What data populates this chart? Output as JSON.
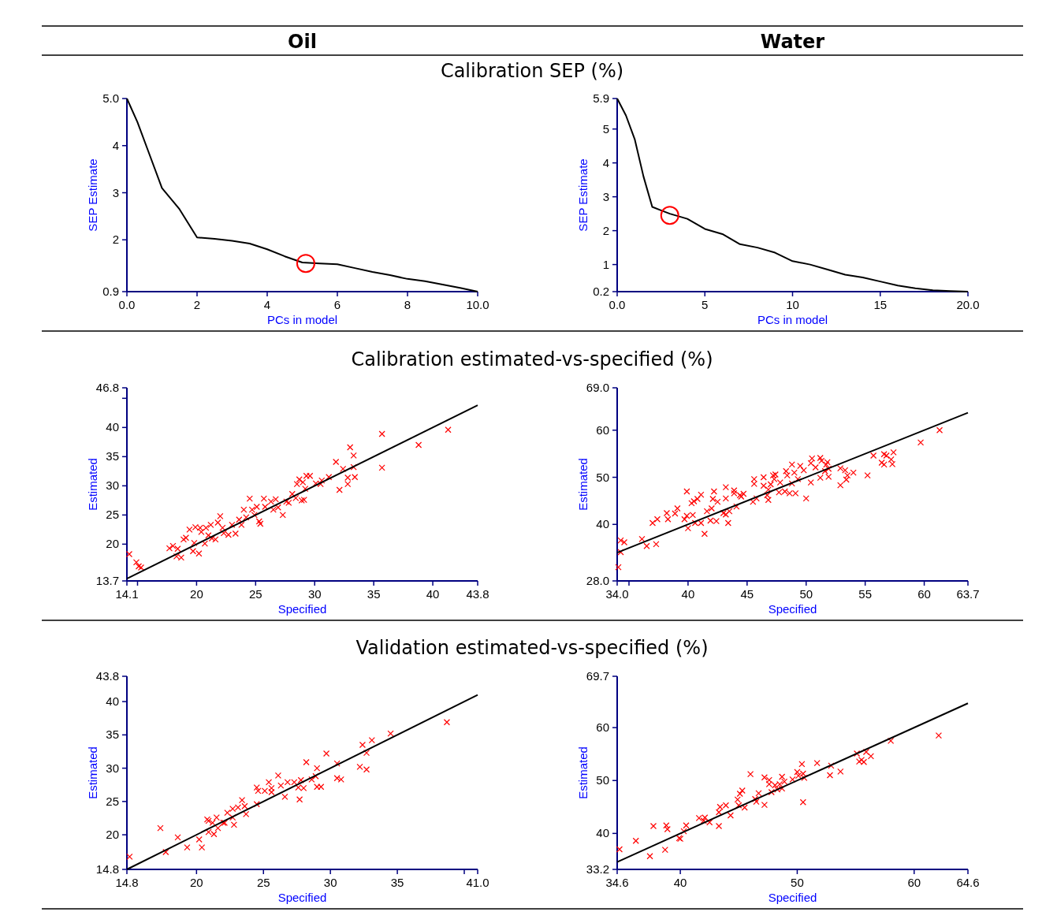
{
  "chart_data": [
    {
      "type": "line",
      "title": "Calibration SEP (%)",
      "subtitle": "Oil",
      "xlabel": "PCs in model",
      "ylabel": "SEP Estimate",
      "xlim": [
        0,
        10
      ],
      "ylim": [
        0.9,
        5
      ],
      "xticks": [
        {
          "value": 0,
          "label": "0.0"
        },
        2,
        4,
        6,
        8,
        {
          "value": 10,
          "label": "10.0"
        }
      ],
      "yticks": [
        0.9,
        2,
        3,
        4,
        {
          "value": 5,
          "label": "5.0"
        }
      ],
      "series": [
        {
          "color": "#000000",
          "x": [
            0,
            0.3,
            0.6,
            1,
            1.5,
            2,
            2.5,
            3,
            3.5,
            4,
            4.5,
            5,
            5.5,
            6,
            6.5,
            7,
            7.5,
            8,
            8.5,
            9,
            9.5,
            10
          ],
          "values": [
            5,
            4.5,
            3.9,
            3.1,
            2.65,
            2.05,
            2.02,
            1.98,
            1.92,
            1.8,
            1.65,
            1.52,
            1.5,
            1.48,
            1.4,
            1.32,
            1.25,
            1.17,
            1.12,
            1.05,
            0.98,
            0.9
          ]
        },
        {
          "type": "scatter",
          "marker": "circle",
          "color": "#ff0000",
          "x": [
            5.1
          ],
          "values": [
            1.5
          ]
        }
      ]
    },
    {
      "type": "line",
      "subtitle": "Water",
      "xlabel": "PCs in model",
      "ylabel": "SEP Estimate",
      "xlim": [
        0,
        20
      ],
      "ylim": [
        0.2,
        5.9
      ],
      "xticks": [
        {
          "value": 0,
          "label": "0.0"
        },
        5,
        10,
        15,
        {
          "value": 20,
          "label": "20.0"
        }
      ],
      "yticks": [
        0.2,
        1,
        2,
        3,
        4,
        5,
        5.9
      ],
      "series": [
        {
          "color": "#000000",
          "x": [
            0,
            0.5,
            1,
            1.5,
            2,
            2.5,
            3,
            4,
            5,
            6,
            7,
            8,
            9,
            10,
            11,
            12,
            13,
            14,
            15,
            16,
            17,
            18,
            19,
            20
          ],
          "values": [
            5.9,
            5.4,
            4.7,
            3.6,
            2.7,
            2.6,
            2.5,
            2.35,
            2.05,
            1.9,
            1.6,
            1.5,
            1.35,
            1.1,
            1,
            0.85,
            0.7,
            0.62,
            0.5,
            0.38,
            0.3,
            0.24,
            0.22,
            0.2
          ]
        },
        {
          "type": "scatter",
          "marker": "circle",
          "color": "#ff0000",
          "x": [
            3
          ],
          "values": [
            2.45
          ]
        }
      ]
    },
    {
      "type": "scatter",
      "title": "Calibration estimated-vs-specified (%)",
      "xlabel": "Specified",
      "ylabel": "Estimated",
      "xlim": [
        14.1,
        43.8
      ],
      "ylim": [
        13.7,
        46.8
      ],
      "xticks": [
        14.1,
        {
          "value": 15,
          "label": null
        },
        20,
        25,
        30,
        35,
        40,
        43.8
      ],
      "yticks": [
        13.7,
        20,
        25,
        30,
        35,
        40,
        {
          "value": 45,
          "label": null
        },
        46.8
      ],
      "series": [
        {
          "marker": "cross",
          "color": "#ff0000",
          "x": [
            14.3,
            14.9,
            15.1,
            15.3,
            17.7,
            18,
            18.3,
            18.4,
            18.7,
            18.9,
            19.1,
            19.4,
            19.7,
            19.8,
            19.9,
            20.2,
            20.3,
            20.4,
            20.7,
            20.8,
            21,
            21.2,
            21.3,
            21.6,
            21.8,
            22,
            22.2,
            22.3,
            22.7,
            23,
            23.3,
            23.6,
            23.8,
            24,
            24.2,
            24.5,
            24.7,
            24.9,
            25.1,
            25.3,
            25.4,
            25.7,
            25.8,
            26.3,
            26.5,
            26.7,
            26.9,
            27.3,
            27.6,
            27.8,
            28.1,
            28.4,
            28.5,
            28.7,
            28.9,
            29,
            29.1,
            29.2,
            29.3,
            29.6,
            30.1,
            30.5,
            30.6,
            31.2,
            31.8,
            32.1,
            32.4,
            32.8,
            32.8,
            33,
            33.3,
            33.3,
            33.4,
            35.7,
            35.7,
            38.8,
            41.3
          ],
          "values": [
            18.3,
            16.9,
            16.2,
            16,
            19.3,
            19.7,
            17.9,
            19.2,
            17.7,
            20.8,
            21.1,
            22.5,
            18.8,
            20.2,
            22.9,
            18.4,
            22.8,
            22.1,
            20.1,
            22.8,
            21.5,
            23.3,
            21,
            20.8,
            23.7,
            24.8,
            22.8,
            21.9,
            21.6,
            23.3,
            21.8,
            24.2,
            23.3,
            25.9,
            24.6,
            27.8,
            25.9,
            25,
            26.4,
            23.9,
            23.5,
            27.8,
            26.4,
            27.3,
            25.9,
            27.7,
            26.3,
            25,
            27.3,
            27.1,
            28.6,
            27.9,
            30.3,
            31.1,
            27.5,
            30.6,
            27.6,
            29.5,
            31.7,
            31.7,
            30.4,
            30.3,
            30.9,
            31.5,
            34.1,
            29.3,
            32.9,
            30.3,
            31.4,
            36.6,
            35.2,
            33.2,
            31.5,
            38.9,
            33.1,
            37,
            39.6
          ]
        },
        {
          "type": "line",
          "color": "#000000",
          "x": [
            14.1,
            43.8
          ],
          "values": [
            14.1,
            43.8
          ]
        }
      ]
    },
    {
      "type": "scatter",
      "xlabel": "Specified",
      "ylabel": "Estimated",
      "xlim": [
        34,
        63.7
      ],
      "ylim": [
        28,
        69
      ],
      "xticks": [
        {
          "value": 34,
          "label": "34.0"
        },
        {
          "value": 35,
          "label": null
        },
        40,
        45,
        50,
        55,
        60,
        63.7
      ],
      "yticks": [
        {
          "value": 28,
          "label": "28.0"
        },
        40,
        50,
        60,
        {
          "value": 69,
          "label": "69.0"
        }
      ],
      "series": [
        {
          "marker": "cross",
          "color": "#ff0000",
          "x": [
            34.1,
            34.3,
            34.3,
            34.6,
            36.1,
            36.5,
            37,
            37.3,
            37.4,
            38.2,
            38.3,
            38.9,
            39.1,
            39.7,
            39.9,
            39.9,
            40,
            40.3,
            40.5,
            40.4,
            40.6,
            40.8,
            41.1,
            41.1,
            41.4,
            41.6,
            41.9,
            42,
            42.1,
            42.2,
            42.4,
            42.5,
            43,
            43.2,
            43.2,
            43.2,
            43.4,
            43.5,
            43.9,
            43.9,
            44.1,
            44.4,
            44.5,
            44.7,
            45.5,
            45.6,
            45.6,
            45.8,
            46.4,
            46.4,
            46.7,
            46.8,
            46.8,
            47,
            47.2,
            47.3,
            47.4,
            47.7,
            47.8,
            48.2,
            48.3,
            48.4,
            48.6,
            48.8,
            48.8,
            49,
            49.1,
            49.3,
            49.5,
            49.8,
            50,
            50.4,
            50.4,
            50.5,
            50.8,
            51.2,
            51.2,
            51.3,
            51.6,
            51.7,
            51.8,
            51.9,
            51.9,
            52.9,
            52.9,
            53.3,
            53.4,
            53.5,
            54,
            55.2,
            55.7,
            56.4,
            56.6,
            56.6,
            56.8,
            57.2,
            57.3,
            57.4,
            59.7,
            61.3
          ],
          "values": [
            30.9,
            36.6,
            34.1,
            36.2,
            36.9,
            35.4,
            40.3,
            35.8,
            41.1,
            42.4,
            41.1,
            42.3,
            43.4,
            41.1,
            47,
            41.8,
            39.2,
            44.5,
            44.9,
            42,
            40.3,
            45.4,
            46.3,
            40.3,
            38,
            42.8,
            40.8,
            43.4,
            45.4,
            47,
            40.7,
            44.8,
            42.4,
            45.5,
            42.1,
            47.9,
            40.3,
            42.8,
            46.6,
            47.2,
            43.8,
            46.2,
            45.9,
            46.5,
            44.8,
            48.6,
            49.6,
            45.5,
            50,
            48.2,
            46.2,
            47.4,
            45.2,
            48.5,
            50.4,
            49.6,
            50.6,
            46.8,
            48.9,
            47,
            51.3,
            50.4,
            46.6,
            48.7,
            52.7,
            51,
            46.6,
            49.6,
            52.4,
            51.5,
            45.5,
            48.9,
            53,
            54,
            52.1,
            54.1,
            49.9,
            53.5,
            51.3,
            52.7,
            53.2,
            50.1,
            51.8,
            48.3,
            51.9,
            51.5,
            49.5,
            50.4,
            51,
            50.4,
            54.6,
            53.1,
            54.9,
            52.7,
            54.6,
            53.8,
            52.8,
            55.3,
            57.4,
            60
          ]
        },
        {
          "type": "line",
          "color": "#000000",
          "x": [
            34,
            63.7
          ],
          "values": [
            34,
            63.7
          ]
        }
      ]
    },
    {
      "type": "scatter",
      "title": "Validation estimated-vs-specified (%)",
      "xlabel": "Specified",
      "ylabel": "Estimated",
      "xlim": [
        14.8,
        41
      ],
      "ylim": [
        14.8,
        43.8
      ],
      "xticks": [
        14.8,
        20,
        25,
        30,
        35,
        {
          "value": 40,
          "label": null
        },
        {
          "value": 41,
          "label": "41.0"
        }
      ],
      "yticks": [
        14.8,
        20,
        25,
        30,
        35,
        40,
        43.8
      ],
      "series": [
        {
          "marker": "cross",
          "color": "#ff0000",
          "x": [
            15,
            17.3,
            17.7,
            18.6,
            19.3,
            20.2,
            20.4,
            20.8,
            20.9,
            20.9,
            21.2,
            21.3,
            21.5,
            21.6,
            22,
            22.1,
            22.3,
            22.7,
            22.8,
            22.7,
            23.1,
            23.4,
            23.6,
            23.7,
            24.5,
            24.5,
            24.6,
            25.1,
            25.4,
            25.6,
            25.6,
            26.1,
            26.3,
            26.6,
            26.8,
            27.3,
            27.6,
            27.7,
            27.8,
            28,
            28.2,
            28.6,
            28.9,
            29,
            29,
            29.3,
            29.7,
            30.5,
            30.5,
            30.8,
            32.2,
            32.4,
            32.7,
            32.7,
            33.1,
            34.5,
            38.7
          ],
          "values": [
            16.7,
            21,
            17.4,
            19.6,
            18.1,
            19.3,
            18.1,
            22.3,
            22.1,
            20.4,
            21.8,
            20.1,
            22.6,
            21,
            21.8,
            21.8,
            23.3,
            23.9,
            21.5,
            22.6,
            24.1,
            25.2,
            24.3,
            23.1,
            24.6,
            27.1,
            26.6,
            26.6,
            27.9,
            27,
            26.4,
            28.9,
            27.4,
            25.7,
            27.9,
            27.9,
            27.1,
            25.3,
            28.2,
            27,
            30.9,
            28.3,
            28.8,
            27.2,
            30,
            27.2,
            32.2,
            30.7,
            28.5,
            28.3,
            30.2,
            33.5,
            29.8,
            32.3,
            34.2,
            35.2,
            36.9
          ]
        },
        {
          "type": "line",
          "color": "#000000",
          "x": [
            14.8,
            41
          ],
          "values": [
            14.8,
            41
          ]
        }
      ]
    },
    {
      "type": "scatter",
      "xlabel": "Specified",
      "ylabel": "Estimated",
      "xlim": [
        34.6,
        64.6
      ],
      "ylim": [
        33.2,
        69.7
      ],
      "xticks": [
        34.6,
        40,
        50,
        60,
        64.6
      ],
      "yticks": [
        33.2,
        40,
        50,
        60,
        69.7
      ],
      "series": [
        {
          "marker": "cross",
          "color": "#ff0000",
          "x": [
            34.8,
            36.2,
            37.4,
            37.7,
            38.7,
            38.8,
            38.9,
            39.9,
            40,
            40.3,
            40.5,
            41.6,
            42,
            42.1,
            42.5,
            43.3,
            43.3,
            43.4,
            43.9,
            44.3,
            44.9,
            45,
            45.1,
            45.3,
            45.5,
            46,
            46.4,
            46.5,
            46.7,
            47.2,
            47.2,
            47.6,
            47.6,
            47.8,
            48.1,
            48.3,
            48.5,
            48.7,
            48.7,
            48.9,
            49.6,
            50,
            50.1,
            50.4,
            50.5,
            50.5,
            50.6,
            51.7,
            52.8,
            52.9,
            53.7,
            55.1,
            55.3,
            55.5,
            55.7,
            55.9,
            56.3,
            58,
            62.1
          ],
          "values": [
            37,
            38.6,
            35.7,
            41.4,
            36.9,
            41.5,
            40.8,
            39.1,
            39,
            40.4,
            41.5,
            42.9,
            42.4,
            43,
            42.1,
            44,
            41.4,
            45,
            45.3,
            43.4,
            46.4,
            45.3,
            47.5,
            48.1,
            44.9,
            51.2,
            46.5,
            46,
            47.6,
            50.6,
            45.4,
            50.1,
            49.3,
            47.8,
            49.1,
            48.3,
            49.3,
            50.7,
            48.5,
            49.8,
            50.2,
            51.6,
            50.9,
            53.1,
            51.3,
            45.9,
            50.5,
            53.3,
            51,
            52.8,
            51.7,
            55.1,
            53.6,
            53.9,
            53.5,
            55.4,
            54.6,
            57.5,
            58.5
          ]
        },
        {
          "type": "line",
          "color": "#000000",
          "x": [
            34.6,
            64.6
          ],
          "values": [
            34.6,
            64.6
          ]
        }
      ]
    }
  ]
}
